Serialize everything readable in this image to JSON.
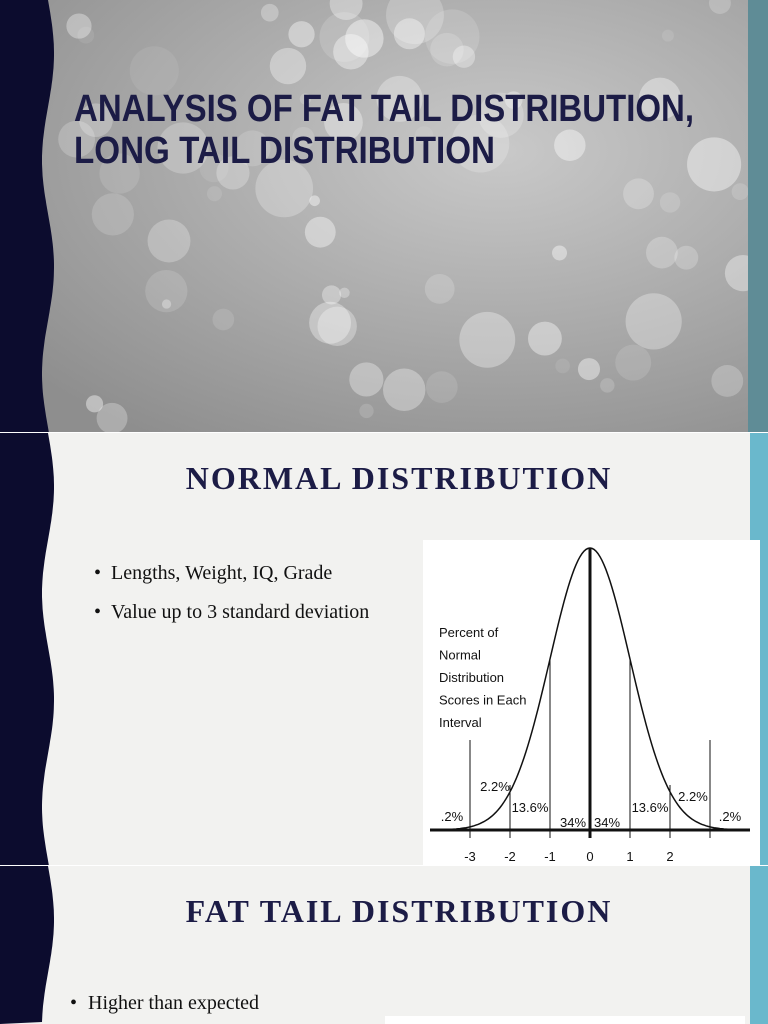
{
  "slides": [
    {
      "title_lines": [
        "ANALYSIS OF FAT TAIL DISTRIBUTION,",
        "LONG TAIL DISTRIBUTION"
      ]
    },
    {
      "title": "NORMAL DISTRIBUTION",
      "bullets": [
        "Lengths, Weight, IQ, Grade",
        "Value up to 3 standard deviation"
      ],
      "figure": {
        "caption_lines": [
          "Percent of",
          "Normal",
          "Distribution",
          "Scores in Each",
          "Interval"
        ],
        "percent_labels": [
          ".2%",
          "2.2%",
          "13.6%",
          "34%",
          "34%",
          "13.6%",
          "2.2%",
          ".2%"
        ],
        "axis_labels": [
          "-3",
          "-2",
          "-1",
          "0",
          "1",
          "2"
        ]
      }
    },
    {
      "title": "FAT TAIL DISTRIBUTION",
      "bullets": [
        "Higher than expected"
      ]
    }
  ]
}
